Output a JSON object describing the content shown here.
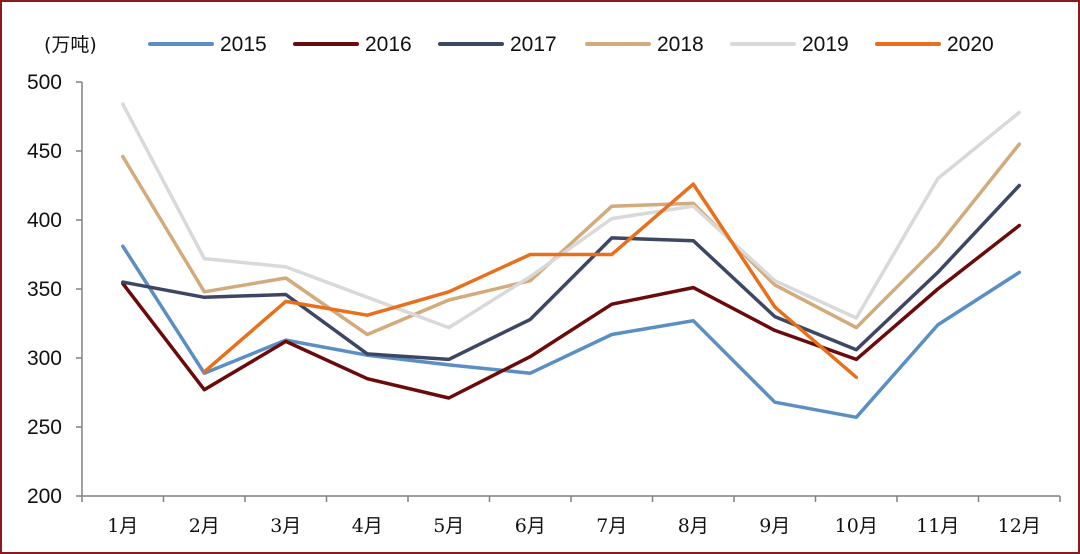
{
  "chart_data": {
    "type": "line",
    "title": "",
    "unit_label": "(万吨)",
    "xlabel": "",
    "ylabel": "",
    "categories": [
      "1月",
      "2月",
      "3月",
      "4月",
      "5月",
      "6月",
      "7月",
      "8月",
      "9月",
      "10月",
      "11月",
      "12月"
    ],
    "ylim": [
      200,
      500
    ],
    "yticks": [
      200,
      250,
      300,
      350,
      400,
      450,
      500
    ],
    "grid": false,
    "legend_position": "top",
    "series": [
      {
        "name": "2015",
        "color": "#5b8fc4",
        "values": [
          381,
          289,
          313,
          302,
          295,
          289,
          317,
          327,
          268,
          257,
          324,
          362
        ]
      },
      {
        "name": "2016",
        "color": "#6b0a0a",
        "values": [
          354,
          277,
          312,
          285,
          271,
          301,
          339,
          351,
          320,
          299,
          350,
          396
        ]
      },
      {
        "name": "2017",
        "color": "#3d4663",
        "values": [
          355,
          344,
          346,
          303,
          299,
          328,
          387,
          385,
          330,
          306,
          362,
          425
        ]
      },
      {
        "name": "2018",
        "color": "#d3aa7c",
        "values": [
          446,
          348,
          358,
          317,
          342,
          356,
          410,
          412,
          353,
          322,
          381,
          455
        ]
      },
      {
        "name": "2019",
        "color": "#d9d9d9",
        "values": [
          484,
          372,
          366,
          344,
          322,
          359,
          401,
          410,
          356,
          329,
          430,
          478
        ]
      },
      {
        "name": "2020",
        "color": "#e8701c",
        "values": [
          null,
          290,
          341,
          331,
          348,
          375,
          375,
          426,
          337,
          286,
          null,
          null
        ]
      }
    ]
  }
}
